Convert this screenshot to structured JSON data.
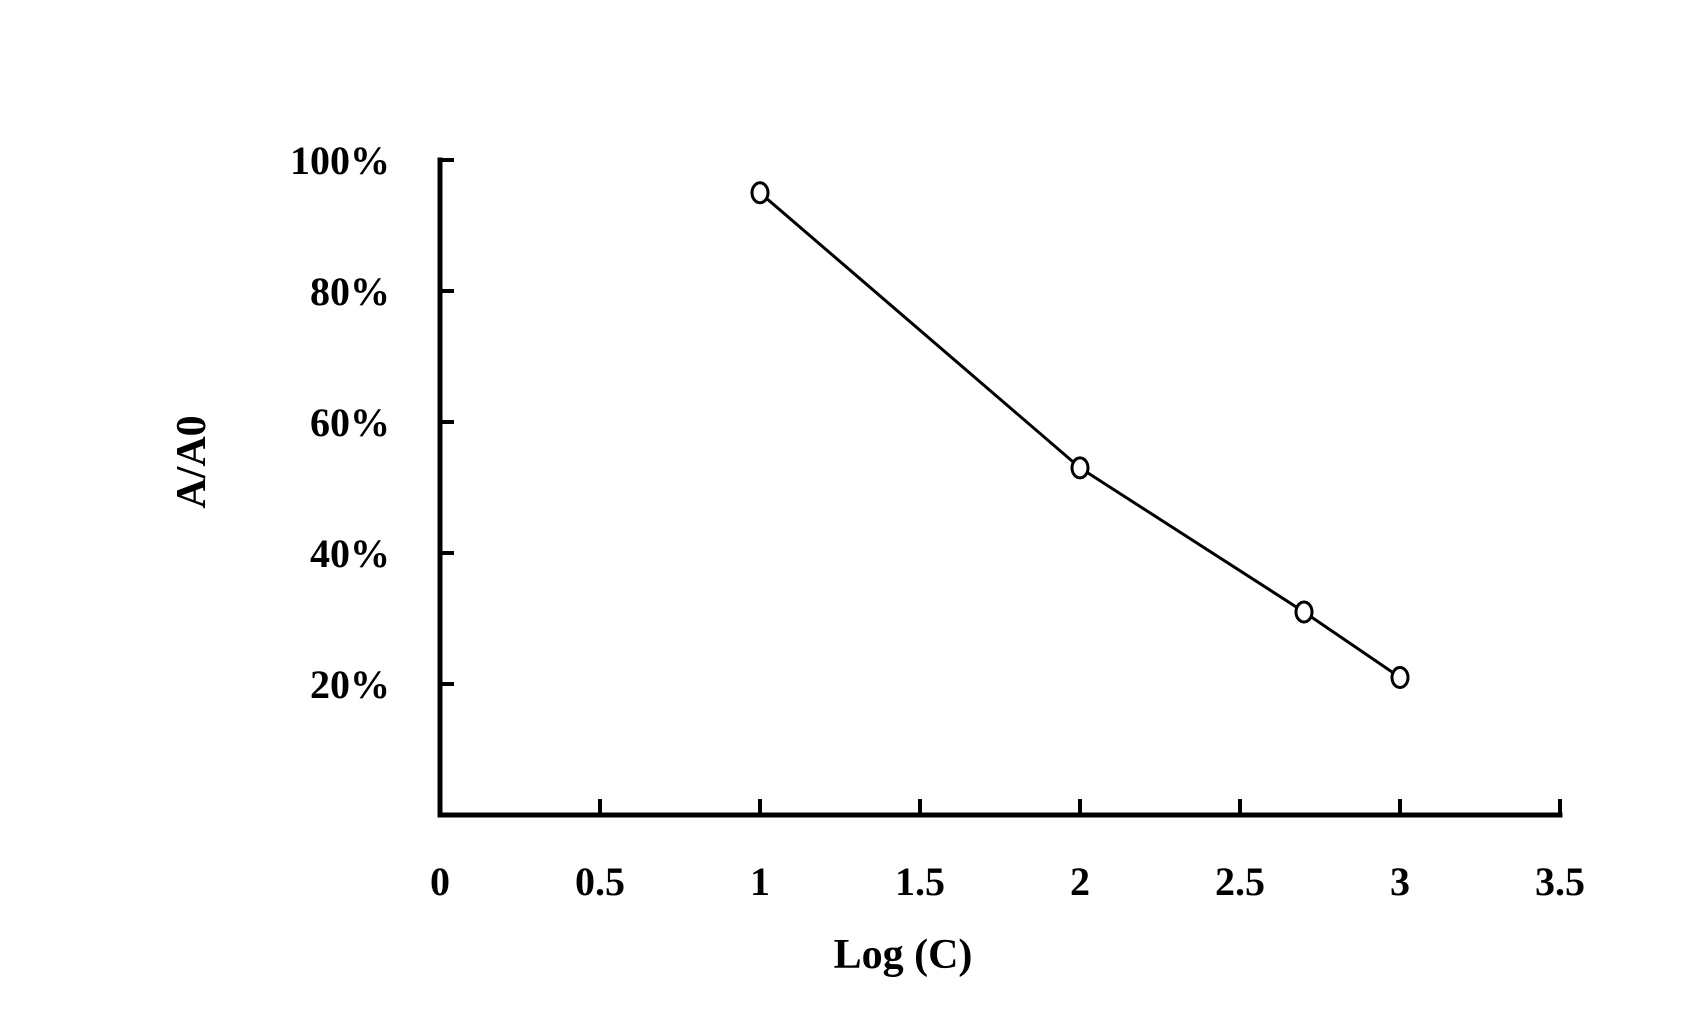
{
  "chart_data": {
    "type": "line",
    "xlabel": "Log (C)",
    "ylabel": "A/A0",
    "xlim": [
      0,
      3.5
    ],
    "ylim": [
      0,
      100
    ],
    "x_ticks": [
      0,
      0.5,
      1,
      1.5,
      2,
      2.5,
      3,
      3.5
    ],
    "x_tick_labels": [
      "0",
      "0.5",
      "1",
      "1.5",
      "2",
      "2.5",
      "3",
      "3.5"
    ],
    "y_ticks": [
      20,
      40,
      60,
      80,
      100
    ],
    "y_tick_labels": [
      "20%",
      "40%",
      "60%",
      "80%",
      "100%"
    ],
    "grid": false,
    "series": [
      {
        "marker": "open-circle",
        "x": [
          1,
          2,
          2.7,
          3
        ],
        "y": [
          95,
          53,
          31,
          21
        ]
      }
    ],
    "colors": {
      "axis": "#000000",
      "line": "#000000",
      "marker_fill": "#ffffff"
    }
  }
}
